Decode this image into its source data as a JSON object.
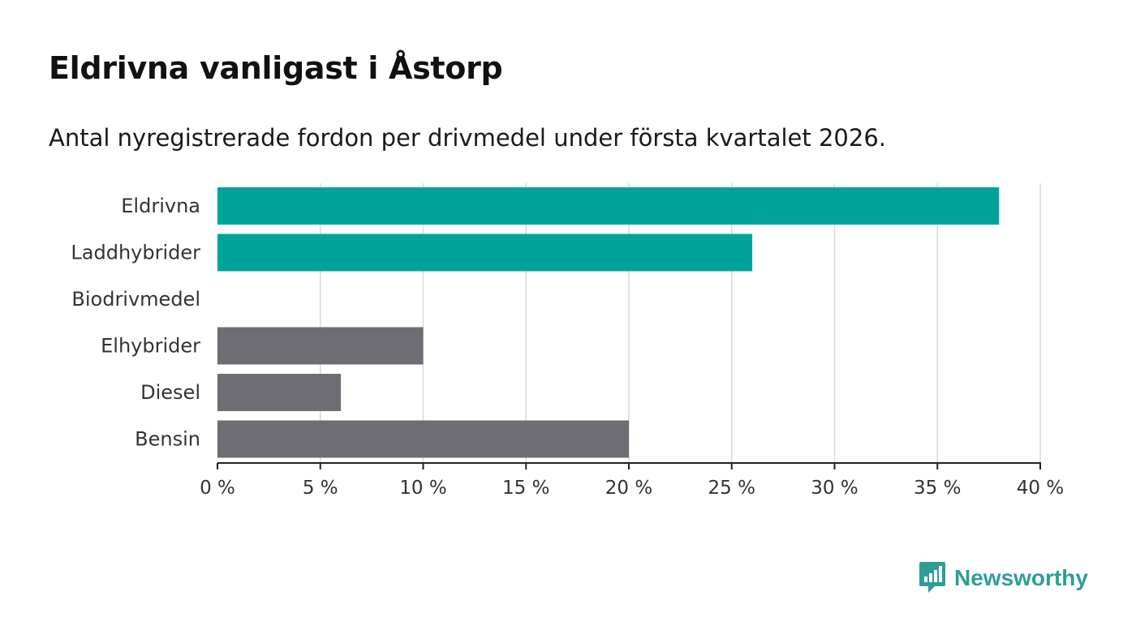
{
  "chart_data": {
    "type": "bar",
    "orientation": "horizontal",
    "title": "Eldrivna vanligast i Åstorp",
    "subtitle": "Antal nyregistrerade fordon per drivmedel under första kvartalet 2026.",
    "categories": [
      "Eldrivna",
      "Laddhybrider",
      "Biodrivmedel",
      "Elhybrider",
      "Diesel",
      "Bensin"
    ],
    "values": [
      38,
      26,
      0,
      10,
      6,
      20
    ],
    "colors": [
      "#00a39a",
      "#00a39a",
      "#00a39a",
      "#6e6d73",
      "#6e6d73",
      "#6e6d73"
    ],
    "xlim": [
      0,
      40
    ],
    "xticks": [
      0,
      5,
      10,
      15,
      20,
      25,
      30,
      35,
      40
    ],
    "xtick_labels": [
      "0 %",
      "5 %",
      "10 %",
      "15 %",
      "20 %",
      "25 %",
      "30 %",
      "35 %",
      "40 %"
    ],
    "xlabel": "",
    "ylabel": "",
    "grid": true,
    "unit": "%"
  },
  "branding": {
    "logo_text": "Newsworthy",
    "logo_color": "#2e9e94",
    "logo_icon": "bar-chart-speech-bubble-icon"
  }
}
